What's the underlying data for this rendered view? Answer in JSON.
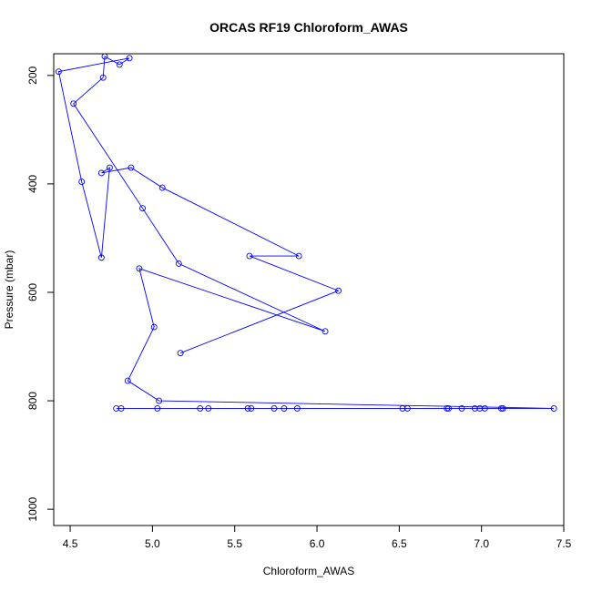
{
  "chart_data": {
    "type": "line",
    "title": "ORCAS RF19 Chloroform_AWAS",
    "xlabel": "Chloroform_AWAS",
    "ylabel": "Pressure (mbar)",
    "xlim": [
      4.4,
      7.5
    ],
    "ylim": [
      1030,
      160
    ],
    "y_inverted": true,
    "grid": false,
    "x_ticks": [
      4.5,
      5.0,
      5.5,
      6.0,
      6.5,
      7.0,
      7.5
    ],
    "y_ticks": [
      200,
      400,
      600,
      800,
      1000
    ],
    "x_tick_labels": [
      "4.5",
      "5.0",
      "5.5",
      "6.0",
      "6.5",
      "7.0",
      "7.5"
    ],
    "y_tick_labels": [
      "200",
      "400",
      "600",
      "800",
      "1000"
    ],
    "series": [
      {
        "color": "#0000ff",
        "marker": "open-circle",
        "points": [
          [
            4.78,
            814
          ],
          [
            4.81,
            814
          ],
          [
            5.03,
            814
          ],
          [
            5.29,
            814
          ],
          [
            5.34,
            814
          ],
          [
            5.58,
            814
          ],
          [
            5.6,
            814
          ],
          [
            5.74,
            814
          ],
          [
            5.8,
            814
          ],
          [
            5.88,
            814
          ],
          [
            6.52,
            814
          ],
          [
            6.55,
            814
          ],
          [
            6.79,
            814
          ],
          [
            6.8,
            814
          ],
          [
            6.88,
            814
          ],
          [
            6.96,
            814
          ],
          [
            6.99,
            814
          ],
          [
            7.02,
            814
          ],
          [
            7.12,
            814
          ],
          [
            7.13,
            814
          ],
          [
            7.44,
            814
          ],
          [
            5.04,
            800
          ],
          [
            4.85,
            763
          ],
          [
            5.01,
            664
          ],
          [
            4.92,
            556
          ],
          [
            6.05,
            672
          ],
          [
            5.16,
            547
          ],
          [
            4.94,
            445
          ],
          [
            4.52,
            252
          ],
          [
            4.7,
            204
          ],
          [
            4.71,
            165
          ],
          [
            4.8,
            180
          ],
          [
            4.86,
            168
          ],
          [
            4.43,
            193
          ],
          [
            4.57,
            396
          ],
          [
            4.69,
            536
          ],
          [
            4.74,
            370
          ],
          [
            4.69,
            380
          ],
          [
            4.87,
            370
          ],
          [
            5.06,
            407
          ],
          [
            5.89,
            533
          ],
          [
            5.59,
            533
          ],
          [
            6.13,
            597
          ],
          [
            5.17,
            712
          ]
        ]
      }
    ]
  }
}
